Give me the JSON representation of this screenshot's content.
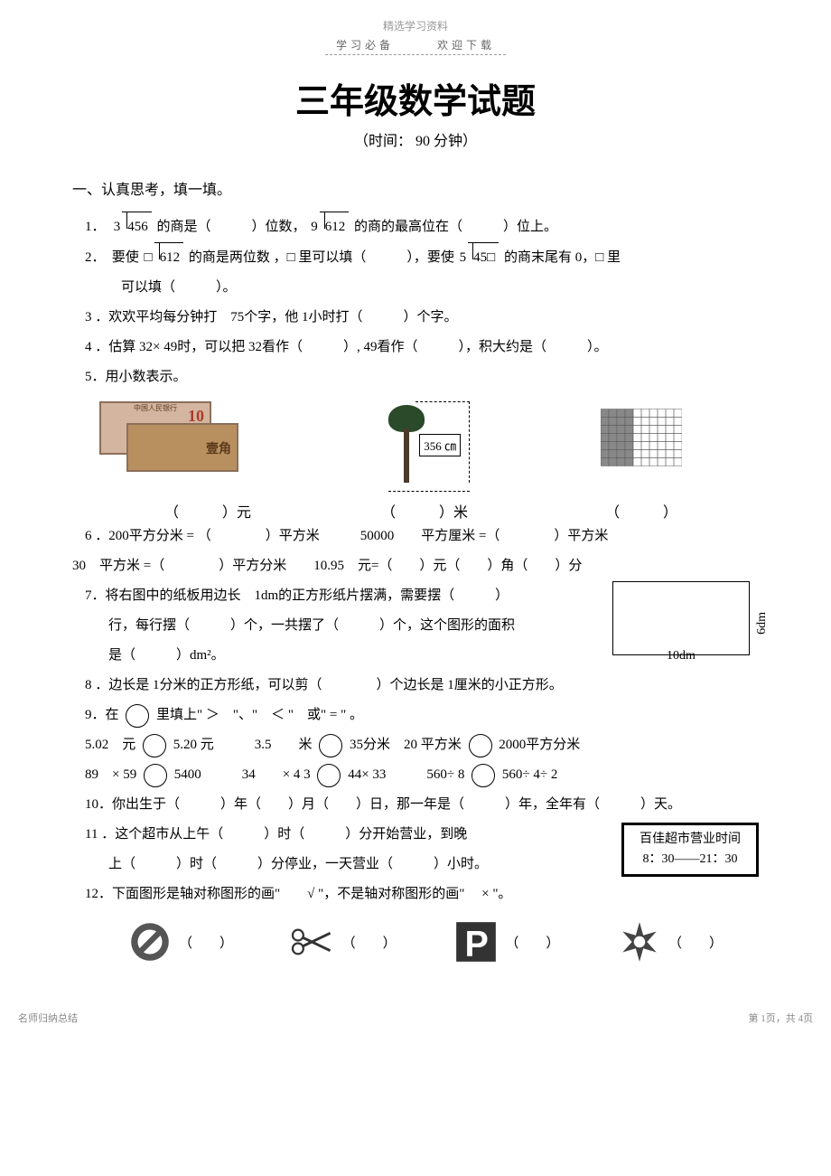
{
  "header": {
    "top_label": "精选学习资料",
    "sub_label": "学习必备　　　欢迎下载",
    "title": "三年级数学试题",
    "subtitle": "（时间： 90 分钟）"
  },
  "section1_head": "一、认真思考，填一填。",
  "q1": {
    "n": "1．",
    "div1_divisor": "3",
    "div1_dividend": "456",
    "mid": " 的商是（　　　）位数，",
    "div2_divisor": "9",
    "div2_dividend": "612",
    "tail": " 的商的最高位在（　　　）位上。"
  },
  "q2": {
    "n": "2．",
    "a": "要使 ",
    "div1_divisor": "□",
    "div1_dividend": "612",
    "b": " 的商是两位数 ，□ 里可以填（　　　），要使 ",
    "div2_divisor": "5",
    "div2_dividend": "45□",
    "c": " 的商末尾有 0，□ 里",
    "d": "可以填（　　　）。"
  },
  "q3": "3 ．欢欢平均每分钟打　75个字，他 1小时打（　　　）个字。",
  "q4": "4 ．估算 32× 49时，可以把 32看作（　　　）, 49看作（　　　），积大约是（　　　）。",
  "q5": {
    "head": "5．用小数表示。",
    "money_note1": "中国人民银行",
    "tree_label": "356 ㎝",
    "c1": "（　　　）元",
    "c2": "（　　　）米",
    "c3": "（　　　）",
    "grid_rows": 7,
    "grid_cols": 10,
    "grid_shaded_cols": 4
  },
  "q6": {
    "a": "6 ．200平方分米 = （　　　　）平方米　　　50000　　平方厘米 =（　　　　）平方米",
    "b": "30　平方米 =（　　　　）平方分米　　10.95　元=（　　）元（　　）角（　　）分"
  },
  "q7": {
    "a": "7．将右图中的纸板用边长　1dm的正方形纸片摆满，需要摆（　　　）",
    "b": "行，每行摆（　　　）个，一共摆了（　　　）个，这个图形的面积",
    "c": "是（　　　）dm²。",
    "w": "10dm",
    "h": "6dm"
  },
  "q8": "8 ．边长是 1分米的正方形纸，可以剪（　　　　）个边长是 1厘米的小正方形。",
  "q9": {
    "head": "9．在 ",
    "head2": " 里填上\" ＞　\"、\"　＜ \"　或\" = \" 。",
    "r1a": "5.02　元 ",
    "r1b": " 5.20 元　　　3.5　　米 ",
    "r1c": " 35分米　20 平方米 ",
    "r1d": " 2000平方分米",
    "r2a": "89　× 59 ",
    "r2b": " 5400　　　34　　× 4 3 ",
    "r2c": " 44× 33　　　560÷ 8 ",
    "r2d": " 560÷ 4÷ 2"
  },
  "q10": "10．你出生于（　　　）年（　　）月（　　）日，那一年是（　　　）年，全年有（　　　）天。",
  "q11": {
    "a": "11 ．这个超市从上午（　　　）时（　　　）分开始营业，到晚",
    "b": "上（　　　）时（　　　）分停业，一天营业（　　　）小时。",
    "box1": "百佳超市营业时间",
    "box2": "8：30——21：30"
  },
  "q12": {
    "head": "12．下面图形是轴对称图形的画\"　　√ \"，不是轴对称图形的画\"　 × \"。",
    "blank": "（　　）"
  },
  "footer": {
    "left": "名师归纳总结",
    "right": "第 1页，共 4页"
  }
}
